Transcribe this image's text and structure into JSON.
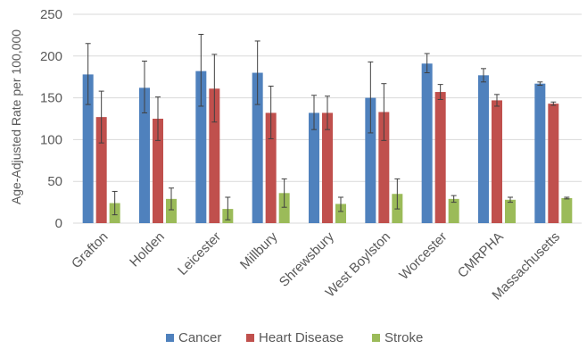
{
  "chart_data": {
    "type": "bar",
    "title": "",
    "xlabel": "",
    "ylabel": "Age-Adjusted Rate per 100,000",
    "ylim": [
      0,
      250
    ],
    "yticks": [
      0,
      50,
      100,
      150,
      200,
      250
    ],
    "grid": true,
    "legend_position": "bottom",
    "categories": [
      "Grafton",
      "Holden",
      "Leicester",
      "Millbury",
      "Shrewsbury",
      "West Boylston",
      "Worcester",
      "CMRPHA",
      "Massachusetts"
    ],
    "series": [
      {
        "name": "Cancer",
        "color": "#4f81bd",
        "values": [
          178,
          162,
          182,
          180,
          132,
          150,
          191,
          177,
          167
        ],
        "error_low": [
          142,
          132,
          140,
          142,
          112,
          108,
          180,
          169,
          165
        ],
        "error_high": [
          215,
          194,
          226,
          218,
          153,
          193,
          203,
          185,
          169
        ]
      },
      {
        "name": "Heart Disease",
        "color": "#c0504d",
        "values": [
          127,
          125,
          161,
          132,
          132,
          133,
          157,
          147,
          143
        ],
        "error_low": [
          96,
          99,
          121,
          101,
          112,
          99,
          148,
          140,
          141
        ],
        "error_high": [
          158,
          151,
          202,
          164,
          152,
          167,
          166,
          154,
          145
        ]
      },
      {
        "name": "Stroke",
        "color": "#9bbb59",
        "values": [
          24,
          29,
          17,
          36,
          23,
          35,
          29,
          28,
          30
        ],
        "error_low": [
          10,
          16,
          4,
          19,
          14,
          17,
          25,
          25,
          29
        ],
        "error_high": [
          38,
          42,
          31,
          53,
          31,
          53,
          33,
          31,
          31
        ]
      }
    ]
  }
}
